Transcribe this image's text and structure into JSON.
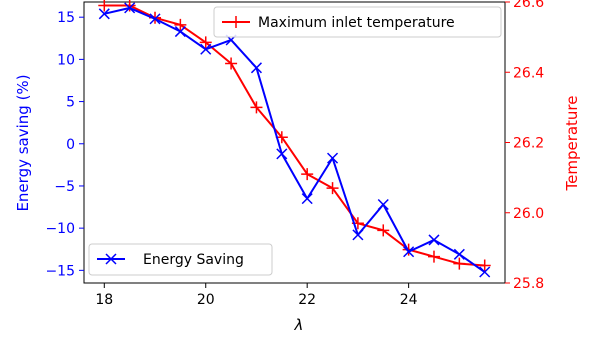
{
  "colors": {
    "left_axis": "#0000ff",
    "right_axis": "#ff0000",
    "energy_series": "#0000ff",
    "temperature_series": "#ff0000",
    "axes": "#000000",
    "background": "#ffffff"
  },
  "chart_data": {
    "type": "line",
    "title": "",
    "xlabel": "λ",
    "ylabel_left": "Energy saving (%)",
    "ylabel_right": "Temperature",
    "xlim": [
      17.6,
      25.9
    ],
    "ylim_left": [
      -16.5,
      16.8
    ],
    "ylim_right": [
      25.8,
      26.6
    ],
    "x_ticks": [
      18,
      20,
      22,
      24
    ],
    "y_ticks_left": [
      15,
      10,
      5,
      0,
      -5,
      -10,
      -15
    ],
    "y_ticks_right": [
      25.8,
      26.0,
      26.2,
      26.4,
      26.6
    ],
    "y_tick_labels_left": [
      "15",
      "10",
      "5",
      "0",
      "−5",
      "−10",
      "−15"
    ],
    "y_tick_labels_right": [
      "25.8",
      "26.0",
      "26.2",
      "26.4",
      "26.6"
    ],
    "grid": false,
    "series": [
      {
        "name": "Energy Saving",
        "axis": "left",
        "marker": "x",
        "legend_position": "lower-left",
        "x": [
          18,
          18.5,
          19,
          19.5,
          20,
          20.5,
          21,
          21.5,
          22,
          22.5,
          23,
          23.5,
          24,
          24.5,
          25,
          25.5
        ],
        "values": [
          15.4,
          16.1,
          14.8,
          13.3,
          11.2,
          12.3,
          9.0,
          -1.2,
          -6.5,
          -1.7,
          -10.8,
          -7.2,
          -12.8,
          -11.4,
          -13.1,
          -15.2
        ]
      },
      {
        "name": "Maximum inlet temperature",
        "axis": "right",
        "marker": "+",
        "legend_position": "upper-right",
        "x": [
          18,
          18.5,
          19,
          19.5,
          20,
          20.5,
          21,
          21.5,
          22,
          22.5,
          23,
          23.5,
          24,
          24.5,
          25,
          25.5
        ],
        "values": [
          26.59,
          26.59,
          26.555,
          26.535,
          26.485,
          26.425,
          26.3,
          26.215,
          26.11,
          26.07,
          25.97,
          25.95,
          25.895,
          25.875,
          25.855,
          25.85
        ]
      }
    ]
  }
}
